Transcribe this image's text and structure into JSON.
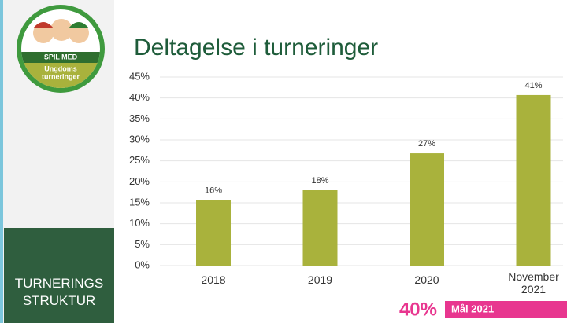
{
  "logo": {
    "top": "SPIL MED",
    "bottom": [
      "Ungdoms",
      "turneringer"
    ]
  },
  "sidebar": [
    "TURNERINGS",
    "STRUKTUR"
  ],
  "chart_data": {
    "type": "bar",
    "title": "Deltagelse i turneringer",
    "categories": [
      "2018",
      "2019",
      "2020",
      "November 2021"
    ],
    "values": [
      15.6,
      18,
      26.8,
      40.7
    ],
    "value_labels": [
      "16%",
      "18%",
      "27%",
      "41%"
    ],
    "color": "#a9b23c",
    "ylim": [
      0,
      45
    ],
    "yticks": [
      {
        "value": 0,
        "label": "0%"
      },
      {
        "value": 5,
        "label": "5%"
      },
      {
        "value": 10,
        "label": "10%"
      },
      {
        "value": 15,
        "label": "15%"
      },
      {
        "value": 20,
        "label": "20%"
      },
      {
        "value": 25,
        "label": "25%"
      },
      {
        "value": 30,
        "label": "30%"
      },
      {
        "value": 35,
        "label": "35%"
      },
      {
        "value": 40,
        "label": "40%"
      },
      {
        "value": 45,
        "label": "45%"
      }
    ],
    "grid": true,
    "annotations": {
      "goal_value": "40%",
      "goal_text": "Mål 2021"
    }
  }
}
